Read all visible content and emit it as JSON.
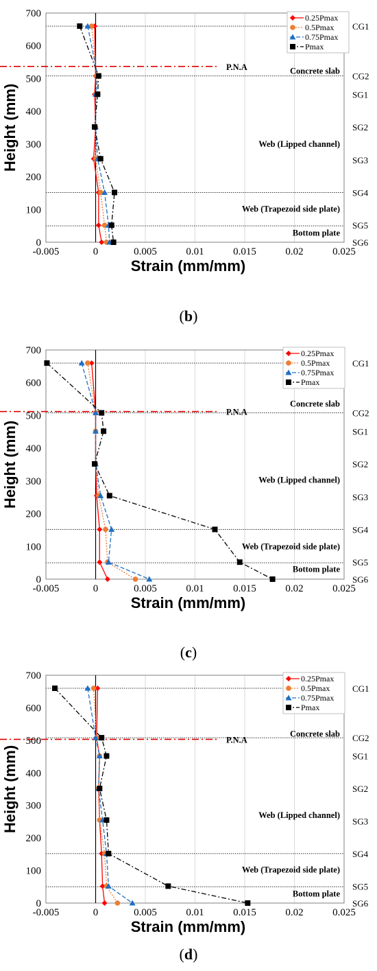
{
  "chart_data": [
    {
      "id": "b",
      "type": "line",
      "label_letter": "b",
      "xlabel": "Strain (mm/mm)",
      "ylabel": "Height (mm)",
      "xlim": [
        -0.005,
        0.025
      ],
      "ylim": [
        0,
        700
      ],
      "xticks": [
        "-0.005",
        "0",
        "0.005",
        "0.01",
        "0.015",
        "0.02",
        "0.025"
      ],
      "yticks": [
        "0",
        "100",
        "200",
        "300",
        "400",
        "500",
        "600",
        "700"
      ],
      "pna": 537,
      "pna_label": "P.N.A",
      "gauge_lines": [
        660,
        508,
        152,
        50
      ],
      "gauges": [
        {
          "name": "CG1",
          "y": 660
        },
        {
          "name": "CG2",
          "y": 508
        },
        {
          "name": "SG1",
          "y": 452
        },
        {
          "name": "SG2",
          "y": 352
        },
        {
          "name": "SG3",
          "y": 252
        },
        {
          "name": "SG4",
          "y": 152
        },
        {
          "name": "SG5",
          "y": 52
        },
        {
          "name": "SG6",
          "y": 0
        }
      ],
      "annotations": [
        {
          "text": "Concrete slab",
          "y": 523
        },
        {
          "text": "Web (Lipped channel)",
          "y": 300
        },
        {
          "text": "Web (Trapezoid side plate)",
          "y": 102
        },
        {
          "text": "Bottom plate",
          "y": 28
        }
      ],
      "series": [
        {
          "name": "0.25Pmax",
          "color": "#ff0000",
          "marker": "diamond",
          "dash": "",
          "points": [
            [
              -0.0001,
              660
            ],
            [
              0,
              508
            ],
            [
              -0.0001,
              452
            ],
            [
              0,
              352
            ],
            [
              -0.0002,
              255
            ],
            [
              0.0003,
              152
            ],
            [
              0.0003,
              52
            ],
            [
              0.0006,
              0
            ]
          ]
        },
        {
          "name": "0.5Pmax",
          "color": "#ed7d31",
          "marker": "circle",
          "dash": "2,2",
          "points": [
            [
              -0.0004,
              660
            ],
            [
              0.0001,
              508
            ],
            [
              0,
              452
            ],
            [
              0,
              352
            ],
            [
              0,
              255
            ],
            [
              0.0005,
              152
            ],
            [
              0.0009,
              52
            ],
            [
              0.0011,
              0
            ]
          ]
        },
        {
          "name": "0.75Pmax",
          "color": "#1f6fc5",
          "marker": "triangle",
          "dash": "6,3",
          "points": [
            [
              -0.0008,
              660
            ],
            [
              0.0002,
              508
            ],
            [
              0,
              452
            ],
            [
              0,
              352
            ],
            [
              0.0002,
              255
            ],
            [
              0.0009,
              152
            ],
            [
              0.0013,
              52
            ],
            [
              0.0014,
              0
            ]
          ]
        },
        {
          "name": "Pmax",
          "color": "#000000",
          "marker": "square",
          "dash": "7,3,2,3",
          "points": [
            [
              -0.0016,
              660
            ],
            [
              0.0003,
              508
            ],
            [
              0.0002,
              452
            ],
            [
              -0.0001,
              352
            ],
            [
              0.0005,
              255
            ],
            [
              0.0019,
              152
            ],
            [
              0.0016,
              52
            ],
            [
              0.0018,
              0
            ]
          ]
        }
      ]
    },
    {
      "id": "c",
      "type": "line",
      "label_letter": "c",
      "xlabel": "Strain (mm/mm)",
      "ylabel": "Height (mm)",
      "xlim": [
        -0.005,
        0.025
      ],
      "ylim": [
        0,
        700
      ],
      "xticks": [
        "-0.005",
        "0",
        "0.005",
        "0.01",
        "0.015",
        "0.02",
        "0.025"
      ],
      "yticks": [
        "0",
        "100",
        "200",
        "300",
        "400",
        "500",
        "600",
        "700"
      ],
      "pna": 512,
      "pna_label": "P.N.A",
      "gauge_lines": [
        660,
        508,
        152,
        50
      ],
      "gauges": [
        {
          "name": "CG1",
          "y": 660
        },
        {
          "name": "CG2",
          "y": 508
        },
        {
          "name": "SG1",
          "y": 452
        },
        {
          "name": "SG2",
          "y": 352
        },
        {
          "name": "SG3",
          "y": 252
        },
        {
          "name": "SG4",
          "y": 152
        },
        {
          "name": "SG5",
          "y": 52
        },
        {
          "name": "SG6",
          "y": 0
        }
      ],
      "annotations": [
        {
          "text": "Concrete slab",
          "y": 535
        },
        {
          "text": "Web (Lipped channel)",
          "y": 303
        },
        {
          "text": "Web (Trapezoid side plate)",
          "y": 100
        },
        {
          "text": "Bottom plate",
          "y": 30
        }
      ],
      "series": [
        {
          "name": "0.25Pmax",
          "color": "#ff0000",
          "marker": "diamond",
          "dash": "",
          "points": [
            [
              -0.0004,
              660
            ],
            [
              0,
              508
            ],
            [
              0,
              452
            ],
            [
              0,
              352
            ],
            [
              0.0001,
              255
            ],
            [
              0.0004,
              152
            ],
            [
              0.0004,
              52
            ],
            [
              0.0012,
              0
            ]
          ]
        },
        {
          "name": "0.5Pmax",
          "color": "#ed7d31",
          "marker": "circle",
          "dash": "2,2",
          "points": [
            [
              -0.0008,
              660
            ],
            [
              0,
              508
            ],
            [
              0,
              452
            ],
            [
              0,
              352
            ],
            [
              0.0003,
              255
            ],
            [
              0.001,
              152
            ],
            [
              0.0012,
              52
            ],
            [
              0.004,
              0
            ]
          ]
        },
        {
          "name": "0.75Pmax",
          "color": "#1f6fc5",
          "marker": "triangle",
          "dash": "6,3",
          "points": [
            [
              -0.0014,
              660
            ],
            [
              0,
              508
            ],
            [
              0,
              452
            ],
            [
              0,
              352
            ],
            [
              0.0005,
              255
            ],
            [
              0.0016,
              152
            ],
            [
              0.0013,
              52
            ],
            [
              0.0054,
              0
            ]
          ]
        },
        {
          "name": "Pmax",
          "color": "#000000",
          "marker": "square",
          "dash": "7,3,2,3",
          "points": [
            [
              -0.0049,
              660
            ],
            [
              0.0006,
              508
            ],
            [
              0.0008,
              452
            ],
            [
              -0.0001,
              352
            ],
            [
              0.0014,
              255
            ],
            [
              0.012,
              152
            ],
            [
              0.0145,
              52
            ],
            [
              0.0178,
              0
            ]
          ]
        }
      ]
    },
    {
      "id": "d",
      "type": "line",
      "label_letter": "d",
      "xlabel": "Strain (mm/mm)",
      "ylabel": "Height (mm)",
      "xlim": [
        -0.005,
        0.025
      ],
      "ylim": [
        0,
        700
      ],
      "xticks": [
        "-0.005",
        "0",
        "0.005",
        "0.01",
        "0.015",
        "0.02",
        "0.025"
      ],
      "yticks": [
        "0",
        "100",
        "200",
        "300",
        "400",
        "500",
        "600",
        "700"
      ],
      "pna": 503,
      "pna_label": "P.N.A",
      "gauge_lines": [
        660,
        508,
        152,
        50
      ],
      "gauges": [
        {
          "name": "CG1",
          "y": 660
        },
        {
          "name": "CG2",
          "y": 508
        },
        {
          "name": "SG1",
          "y": 452
        },
        {
          "name": "SG2",
          "y": 352
        },
        {
          "name": "SG3",
          "y": 252
        },
        {
          "name": "SG4",
          "y": 152
        },
        {
          "name": "SG5",
          "y": 52
        },
        {
          "name": "SG6",
          "y": 0
        }
      ],
      "annotations": [
        {
          "text": "Concrete slab",
          "y": 520
        },
        {
          "text": "Web (Lipped channel)",
          "y": 270
        },
        {
          "text": "Web (Trapezoid side plate)",
          "y": 102
        },
        {
          "text": "Bottom plate",
          "y": 28
        }
      ],
      "series": [
        {
          "name": "0.25Pmax",
          "color": "#ff0000",
          "marker": "diamond",
          "dash": "",
          "points": [
            [
              0.0002,
              660
            ],
            [
              0.0001,
              508
            ],
            [
              0.0004,
              452
            ],
            [
              0.0003,
              352
            ],
            [
              0.0004,
              255
            ],
            [
              0.0006,
              152
            ],
            [
              0.0007,
              52
            ],
            [
              0.0009,
              0
            ]
          ]
        },
        {
          "name": "0.5Pmax",
          "color": "#ed7d31",
          "marker": "circle",
          "dash": "2,2",
          "points": [
            [
              -0.0002,
              660
            ],
            [
              0.0001,
              508
            ],
            [
              0.0004,
              452
            ],
            [
              0.0003,
              352
            ],
            [
              0.0004,
              255
            ],
            [
              0.0009,
              152
            ],
            [
              0.0011,
              52
            ],
            [
              0.0022,
              0
            ]
          ]
        },
        {
          "name": "0.75Pmax",
          "color": "#1f6fc5",
          "marker": "triangle",
          "dash": "6,3",
          "points": [
            [
              -0.0008,
              660
            ],
            [
              0,
              508
            ],
            [
              0.0004,
              452
            ],
            [
              0.0003,
              352
            ],
            [
              0.0007,
              255
            ],
            [
              0.0011,
              152
            ],
            [
              0.0013,
              52
            ],
            [
              0.0037,
              0
            ]
          ]
        },
        {
          "name": "Pmax",
          "color": "#000000",
          "marker": "square",
          "dash": "7,3,2,3",
          "points": [
            [
              -0.0041,
              660
            ],
            [
              0.0006,
              508
            ],
            [
              0.0011,
              452
            ],
            [
              0.0004,
              352
            ],
            [
              0.0011,
              255
            ],
            [
              0.0013,
              152
            ],
            [
              0.0073,
              52
            ],
            [
              0.0153,
              0
            ]
          ]
        }
      ]
    }
  ]
}
